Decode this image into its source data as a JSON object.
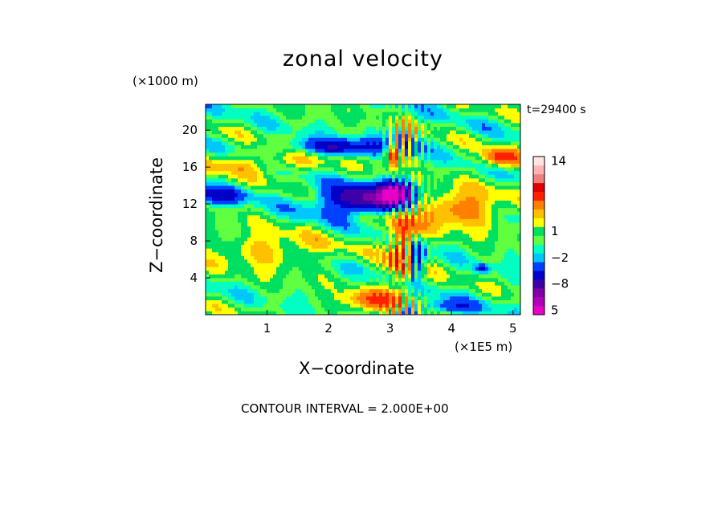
{
  "chart_data": {
    "type": "heatmap",
    "title": "zonal velocity",
    "xlabel": "X−coordinate",
    "ylabel": "Z−coordinate",
    "x_unit": "(×1E5 m)",
    "y_unit": "(×1000 m)",
    "time_label": "t=29400 s",
    "contour_label": "CONTOUR INTERVAL = 2.000E+00",
    "xlim": [
      0,
      5.12
    ],
    "ylim": [
      0,
      22.8
    ],
    "x_ticks": [
      1,
      2,
      3,
      4,
      5
    ],
    "y_ticks": [
      4,
      8,
      12,
      16,
      20
    ],
    "colorbar": {
      "tick_labels": [
        "14",
        "5",
        "1",
        "−2",
        "−8"
      ],
      "tick_values": [
        14,
        5,
        1,
        -2,
        -8
      ],
      "levels": [
        -14,
        -12,
        -10,
        -8,
        -6,
        -4,
        -2,
        -1,
        0,
        1,
        2,
        3,
        4,
        6,
        8,
        10,
        12,
        14,
        16
      ],
      "colors": [
        "#e800c8",
        "#b000b8",
        "#8000a8",
        "#4000a8",
        "#0000c8",
        "#0040ff",
        "#00c8ff",
        "#00ffc0",
        "#60ff40",
        "#00e060",
        "#ffff00",
        "#ffc000",
        "#ff8000",
        "#ff2000",
        "#e00000",
        "#f08080",
        "#ffb4b4",
        "#ffe4e4"
      ]
    },
    "fields": [
      {
        "name": "background",
        "value": 0.5
      },
      {
        "name": "band-upper-left",
        "x": 0.8,
        "z": 16.5,
        "value": 3,
        "sx": 1.2,
        "sz": 1.2
      },
      {
        "name": "upper-blue-band",
        "x": 2.2,
        "z": 18.2,
        "value": -6,
        "sx": 0.9,
        "sz": 0.9
      },
      {
        "name": "mid-blue-core",
        "x": 2.6,
        "z": 12.5,
        "value": -9,
        "sx": 0.8,
        "sz": 1.6
      },
      {
        "name": "purple-core",
        "x": 3.1,
        "z": 13.2,
        "value": -11,
        "sx": 0.25,
        "sz": 1.2
      },
      {
        "name": "left-blue",
        "x": 0.15,
        "z": 13.0,
        "value": -5,
        "sx": 0.5,
        "sz": 1.0
      },
      {
        "name": "right-orange",
        "x": 4.0,
        "z": 11.5,
        "value": 5,
        "sx": 0.8,
        "sz": 2.2
      },
      {
        "name": "red-streak",
        "x": 3.2,
        "z": 7.0,
        "value": 7,
        "sx": 0.22,
        "sz": 4.0
      },
      {
        "name": "lower-blue",
        "x": 3.4,
        "z": 6.0,
        "value": -7,
        "sx": 0.15,
        "sz": 2.0
      },
      {
        "name": "lower-left-yellow",
        "x": 1.0,
        "z": 7.0,
        "value": 3,
        "sx": 1.0,
        "sz": 2.0
      },
      {
        "name": "bottom-orange",
        "x": 2.7,
        "z": 1.5,
        "value": 5,
        "sx": 0.5,
        "sz": 1.2
      },
      {
        "name": "bottom-blue",
        "x": 3.9,
        "z": 0.8,
        "value": -4,
        "sx": 0.5,
        "sz": 0.8
      },
      {
        "name": "right-blue-spot",
        "x": 4.5,
        "z": 5.0,
        "value": -5,
        "sx": 0.12,
        "sz": 0.5
      },
      {
        "name": "top-right-red",
        "x": 4.8,
        "z": 17.0,
        "value": 6,
        "sx": 0.3,
        "sz": 1.0
      },
      {
        "name": "top-red-stripe",
        "x": 3.05,
        "z": 17.5,
        "value": 7,
        "sx": 0.12,
        "sz": 1.5
      }
    ]
  }
}
